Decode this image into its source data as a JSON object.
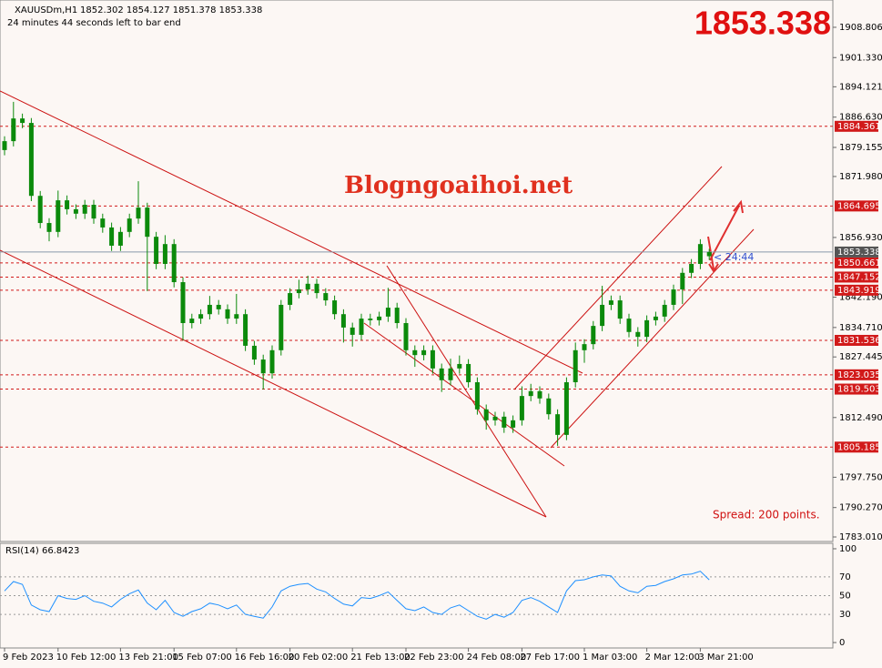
{
  "chart_data": {
    "type": "candlestick",
    "symbol": "XAUUSDm,H1",
    "ohlc_text": "1852.302 1854.127 1851.378 1853.338",
    "timer_text": "24 minutes 44 seconds left to bar end",
    "timer_short": "< 24:44",
    "watermark": "Blogngoaihoi.net",
    "spread_text": "Spread: 200 points.",
    "current_price": 1853.338,
    "candle_color": "#0b8a0b",
    "level_color": "#d11a1a",
    "ylim": [
      1781.89,
      1915.54
    ],
    "yticks": [
      1908.806,
      {
        "value": 1901.33,
        "label": "1901.330"
      },
      1894.121,
      {
        "value": 1886.63,
        "label": "1886.630"
      },
      1879.155,
      {
        "value": 1871.98,
        "label": "1871.980"
      },
      {
        "value": 1856.93,
        "label": "1856.930"
      },
      {
        "value": 1842.19,
        "label": "1842.190"
      },
      {
        "value": 1834.71,
        "label": "1834.710"
      },
      1827.445,
      {
        "value": 1812.49,
        "label": "1812.490"
      },
      {
        "value": 1797.75,
        "label": "1797.750"
      },
      {
        "value": 1790.27,
        "label": "1790.270"
      },
      {
        "value": 1783.01,
        "label": "1783.010"
      }
    ],
    "levels": [
      1884.361,
      1864.695,
      1850.661,
      1847.152,
      1843.919,
      1831.536,
      1823.035,
      1819.503,
      1805.185
    ],
    "categories": [
      "9 Feb 2023",
      null,
      null,
      null,
      null,
      null,
      "10 Feb 12:00",
      null,
      null,
      null,
      null,
      null,
      null,
      "13 Feb 21:00",
      null,
      null,
      null,
      null,
      null,
      "15 Feb 07:00",
      null,
      null,
      null,
      null,
      null,
      null,
      "16 Feb 16:00",
      null,
      null,
      null,
      null,
      null,
      "20 Feb 02:00",
      null,
      null,
      null,
      null,
      null,
      null,
      "21 Feb 13:00",
      null,
      null,
      null,
      null,
      null,
      "22 Feb 23:00",
      null,
      null,
      null,
      null,
      null,
      null,
      "24 Feb 08:00",
      null,
      null,
      null,
      null,
      null,
      "27 Feb 17:00",
      null,
      null,
      null,
      null,
      null,
      null,
      "1 Mar 03:00",
      null,
      null,
      null,
      null,
      null,
      null,
      "2 Mar 12:00",
      null,
      null,
      null,
      null,
      null,
      "3 Mar 21:00",
      null
    ],
    "open": [
      1878.5,
      1880.7,
      1886.3,
      1885.2,
      1867.2,
      1860.5,
      1858.3,
      1866.1,
      1863.9,
      1862.8,
      1865.0,
      1861.6,
      1859.4,
      1854.9,
      1858.3,
      1861.6,
      1864.3,
      1857.1,
      1850.4,
      1855.3,
      1845.9,
      1835.8,
      1836.9,
      1838.0,
      1840.3,
      1839.2,
      1836.9,
      1838.0,
      1830.2,
      1826.8,
      1823.4,
      1829.1,
      1840.3,
      1843.2,
      1844.1,
      1845.5,
      1843.2,
      1841.4,
      1838.0,
      1834.7,
      1832.9,
      1836.9,
      1836.5,
      1837.4,
      1839.6,
      1835.8,
      1829.1,
      1827.9,
      1829.1,
      1824.6,
      1821.7,
      1824.6,
      1825.7,
      1821.2,
      1814.5,
      1811.8,
      1812.7,
      1810.0,
      1811.8,
      1817.8,
      1819.0,
      1817.2,
      1813.3,
      1808.2,
      1821.2,
      1829.1,
      1830.6,
      1835.1,
      1840.3,
      1841.4,
      1836.9,
      1833.6,
      1832.4,
      1836.5,
      1837.4,
      1840.3,
      1844.1,
      1848.2,
      1850.4,
      1852.302
    ],
    "high": [
      1881.9,
      1890.4,
      1887.5,
      1886.4,
      1868.4,
      1861.7,
      1868.5,
      1867.3,
      1865.1,
      1866.2,
      1866.2,
      1862.8,
      1860.6,
      1859.5,
      1862.8,
      1870.8,
      1865.5,
      1858.3,
      1857.5,
      1856.5,
      1847.1,
      1838.1,
      1839.2,
      1842.5,
      1841.5,
      1840.4,
      1843.0,
      1839.2,
      1831.4,
      1828.0,
      1830.3,
      1841.5,
      1844.4,
      1846.5,
      1847.5,
      1846.7,
      1844.4,
      1842.6,
      1839.2,
      1835.9,
      1838.1,
      1838.1,
      1838.6,
      1844.5,
      1840.8,
      1837.0,
      1830.3,
      1830.3,
      1830.3,
      1825.8,
      1827.0,
      1827.8,
      1826.9,
      1822.4,
      1815.7,
      1813.9,
      1813.9,
      1813.0,
      1820.2,
      1820.8,
      1820.2,
      1818.4,
      1814.5,
      1822.4,
      1831.0,
      1831.8,
      1836.3,
      1845.0,
      1842.6,
      1842.6,
      1838.1,
      1834.8,
      1837.7,
      1838.6,
      1841.5,
      1845.3,
      1849.4,
      1851.6,
      1856.5,
      1854.127
    ],
    "low": [
      1877.2,
      1879.4,
      1883.9,
      1865.9,
      1859.2,
      1856.0,
      1857.0,
      1862.6,
      1861.5,
      1861.5,
      1860.3,
      1858.1,
      1853.6,
      1853.6,
      1857.0,
      1860.3,
      1843.7,
      1849.1,
      1849.1,
      1844.6,
      1831.5,
      1834.5,
      1835.6,
      1836.7,
      1837.9,
      1835.6,
      1835.6,
      1828.9,
      1825.5,
      1819.4,
      1822.1,
      1827.8,
      1839.0,
      1841.9,
      1842.8,
      1841.9,
      1840.1,
      1836.7,
      1831.0,
      1830.0,
      1831.6,
      1835.2,
      1835.2,
      1836.1,
      1834.5,
      1827.8,
      1825.0,
      1826.6,
      1823.3,
      1818.8,
      1820.4,
      1823.3,
      1819.9,
      1813.2,
      1809.5,
      1810.5,
      1808.7,
      1808.7,
      1810.5,
      1816.5,
      1815.9,
      1812.0,
      1805.5,
      1806.9,
      1819.9,
      1826.0,
      1829.3,
      1833.8,
      1839.0,
      1835.6,
      1832.3,
      1830.0,
      1831.1,
      1835.2,
      1836.1,
      1839.0,
      1840.5,
      1846.9,
      1849.1,
      1851.378
    ],
    "close": [
      1880.7,
      1886.3,
      1885.2,
      1867.2,
      1860.5,
      1858.3,
      1866.1,
      1863.9,
      1862.8,
      1865.0,
      1861.6,
      1859.4,
      1854.9,
      1858.3,
      1861.6,
      1864.3,
      1857.1,
      1850.4,
      1855.3,
      1845.9,
      1835.8,
      1836.9,
      1838.0,
      1840.3,
      1839.2,
      1836.9,
      1838.0,
      1830.2,
      1826.8,
      1823.4,
      1829.1,
      1840.3,
      1843.2,
      1844.1,
      1845.5,
      1843.2,
      1841.4,
      1838.0,
      1834.7,
      1832.9,
      1836.9,
      1836.5,
      1837.4,
      1839.6,
      1835.8,
      1829.1,
      1827.9,
      1829.1,
      1824.6,
      1821.7,
      1824.6,
      1825.7,
      1821.2,
      1814.5,
      1811.8,
      1812.7,
      1810.0,
      1811.8,
      1817.8,
      1819.0,
      1817.2,
      1813.3,
      1808.2,
      1821.2,
      1829.1,
      1830.6,
      1835.1,
      1840.3,
      1841.4,
      1836.9,
      1833.6,
      1832.4,
      1836.5,
      1837.4,
      1840.3,
      1844.1,
      1848.2,
      1850.4,
      1855.3,
      1853.338
    ],
    "rsi": {
      "title": "RSI(14) 66.8423",
      "color": "#1e90ff",
      "ylim": [
        -5.8,
        105.8
      ],
      "yticks": [
        100,
        70,
        50,
        30,
        0
      ],
      "values": [
        55,
        65,
        62,
        40,
        35,
        33,
        50,
        47,
        46,
        50,
        44,
        42,
        38,
        46,
        52,
        56,
        42,
        35,
        45,
        32,
        28,
        33,
        36,
        42,
        40,
        36,
        40,
        30,
        28,
        26,
        38,
        55,
        60,
        62,
        63,
        57,
        54,
        47,
        41,
        39,
        48,
        47,
        50,
        54,
        45,
        36,
        34,
        38,
        32,
        30,
        37,
        40,
        34,
        28,
        25,
        30,
        27,
        32,
        45,
        48,
        44,
        38,
        32,
        55,
        66,
        67,
        70,
        72,
        71,
        60,
        55,
        53,
        60,
        61,
        65,
        68,
        72,
        73,
        76,
        66.8423
      ]
    }
  }
}
